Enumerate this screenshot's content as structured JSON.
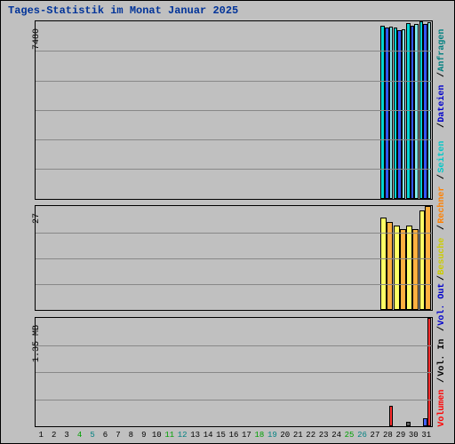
{
  "title": "Tages-Statistik im Monat Januar 2025",
  "background_color": "#c0c0c0",
  "border_color": "#000000",
  "grid_color": "#888888",
  "days": 31,
  "xaxis_colors": {
    "default": "#000000",
    "sunday": "#008080",
    "saturday": "#00a000"
  },
  "day_colors": [
    "#000000",
    "#000000",
    "#000000",
    "#00a000",
    "#008080",
    "#000000",
    "#000000",
    "#000000",
    "#000000",
    "#000000",
    "#00a000",
    "#008080",
    "#000000",
    "#000000",
    "#000000",
    "#000000",
    "#000000",
    "#00a000",
    "#008080",
    "#000000",
    "#000000",
    "#000000",
    "#000000",
    "#000000",
    "#00a000",
    "#008080",
    "#000000",
    "#000000",
    "#000000",
    "#000000",
    "#000000"
  ],
  "panels": [
    {
      "id": "hits",
      "ylabel": "7480",
      "gridlines": 6,
      "ymax": 7480,
      "series": [
        {
          "name": "Anfragen",
          "legend_color": "#008080",
          "fill": "#00d4d4",
          "data": {
            "28": 7300,
            "29": 7200,
            "30": 7400,
            "31": 7480
          }
        },
        {
          "name": "Dateien",
          "legend_color": "#0000cc",
          "fill": "#3355ff",
          "data": {
            "28": 7200,
            "29": 7100,
            "30": 7300,
            "31": 7380
          }
        },
        {
          "name": "Seiten",
          "legend_color": "#00c8c8",
          "fill": "#80e8e8",
          "data": {
            "28": 7250,
            "29": 7150,
            "30": 7350,
            "31": 7430
          }
        }
      ]
    },
    {
      "id": "visits",
      "ylabel": "27",
      "gridlines": 4,
      "ymax": 27,
      "series": [
        {
          "name": "Besuche",
          "legend_color": "#cccc00",
          "fill": "#ffff66",
          "data": {
            "28": 24,
            "29": 22,
            "30": 22,
            "31": 26
          }
        },
        {
          "name": "Rechner",
          "legend_color": "#ff8000",
          "fill": "#ffb040",
          "data": {
            "28": 23,
            "29": 21,
            "30": 21,
            "31": 27
          }
        }
      ]
    },
    {
      "id": "volume",
      "ylabel": "1.35 MB",
      "gridlines": 4,
      "ymax": 1.35,
      "series": [
        {
          "name": "Vol. In",
          "legend_color": "#000000",
          "fill": "#606060",
          "data": {
            "30": 0.05
          }
        },
        {
          "name": "Vol. Out",
          "legend_color": "#0000cc",
          "fill": "#4060ff",
          "data": {
            "31": 0.1
          }
        },
        {
          "name": "Volumen",
          "legend_color": "#ff0000",
          "fill": "#ff3030",
          "data": {
            "28": 0.25,
            "31": 1.35
          }
        }
      ]
    }
  ],
  "legend": [
    {
      "text": "Volumen",
      "color": "#ff0000"
    },
    {
      "text": "Vol. In",
      "color": "#000000"
    },
    {
      "text": "Vol. Out",
      "color": "#0000cc"
    },
    {
      "text": "Besuche",
      "color": "#cccc00"
    },
    {
      "text": "Rechner",
      "color": "#ff8000"
    },
    {
      "text": "Seiten",
      "color": "#00c8c8"
    },
    {
      "text": "Dateien",
      "color": "#0000cc"
    },
    {
      "text": "Anfragen",
      "color": "#008080"
    }
  ]
}
